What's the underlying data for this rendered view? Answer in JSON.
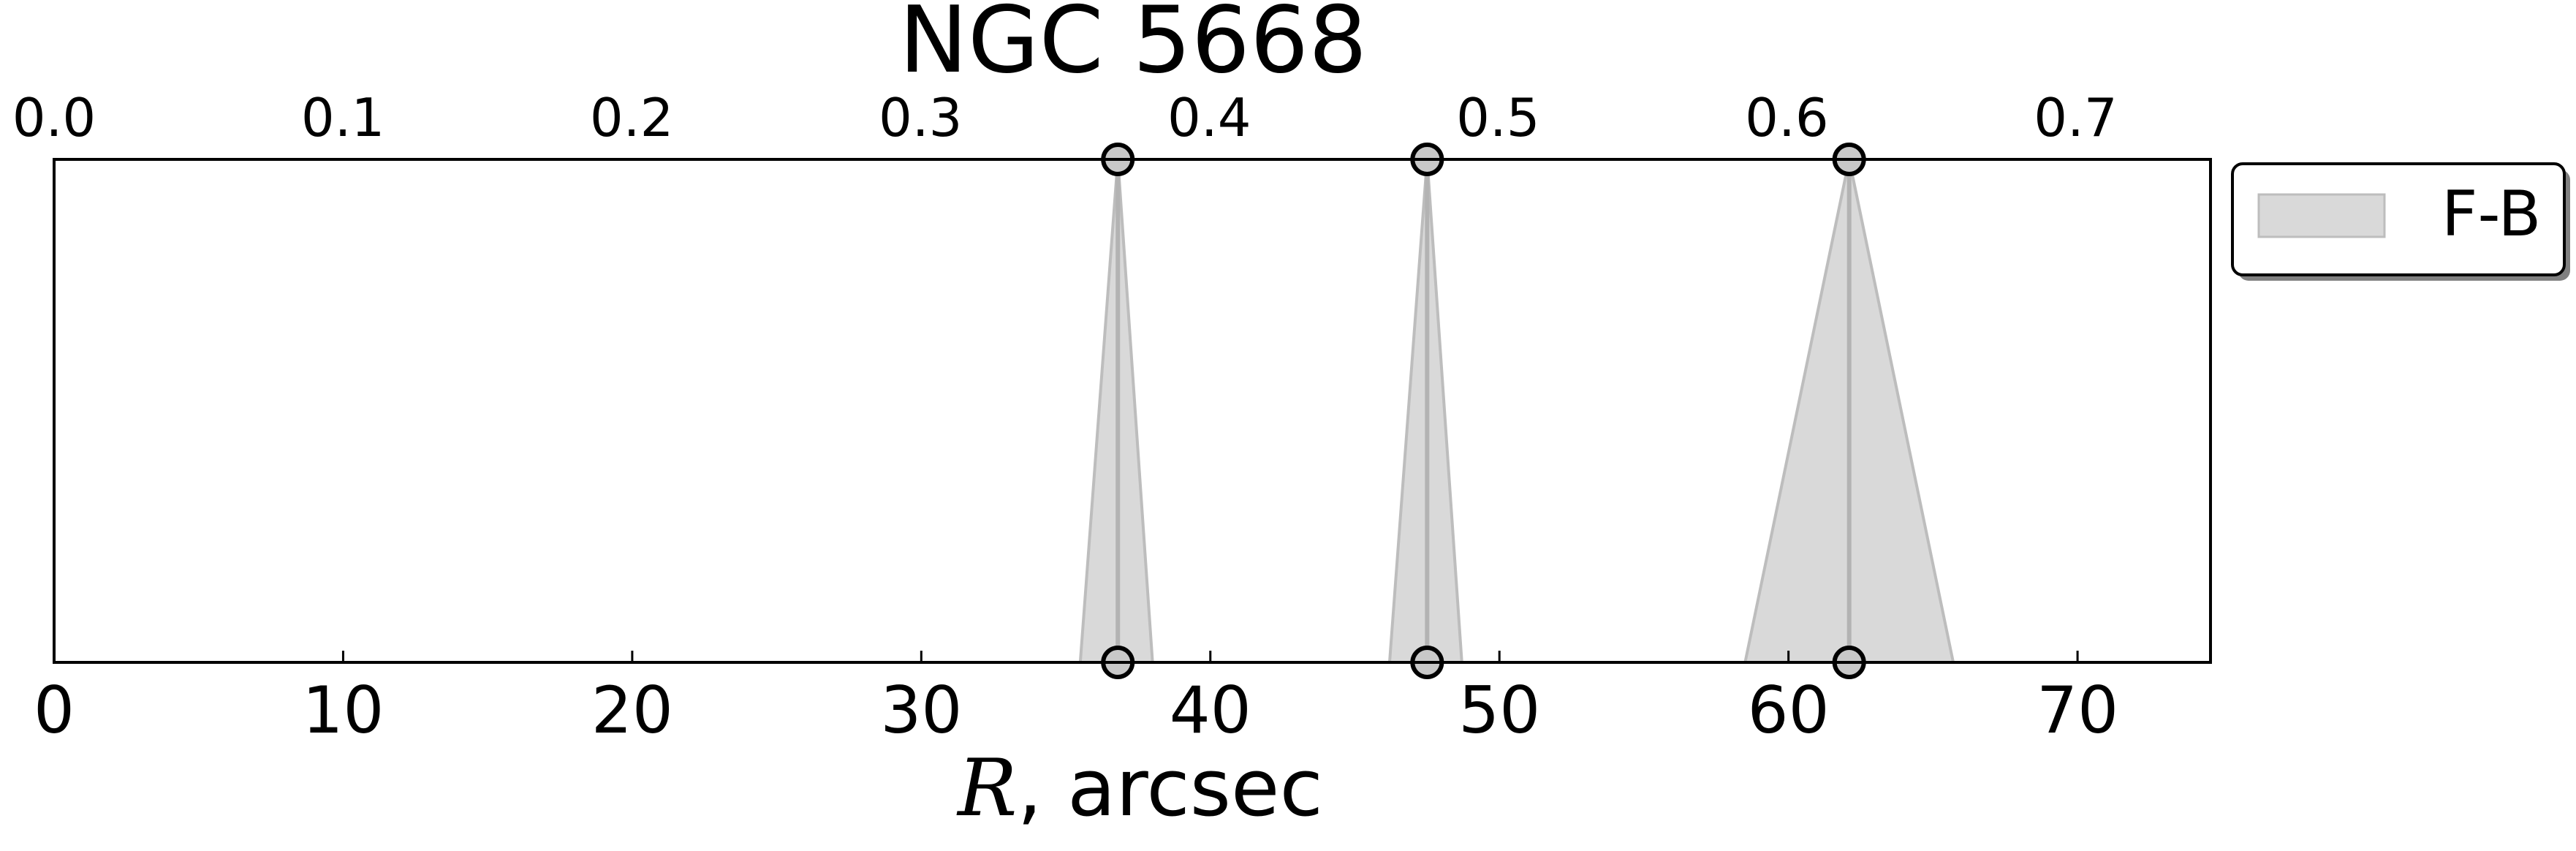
{
  "chart_data": {
    "type": "area",
    "title": "NGC 5668",
    "xlabel_symbol": "R",
    "xlabel_rest": ", arcsec",
    "xlim": [
      0,
      74.6
    ],
    "x_ticks": [
      "0",
      "10",
      "20",
      "30",
      "40",
      "50",
      "60",
      "70"
    ],
    "x_tick_values": [
      0,
      10,
      20,
      30,
      40,
      50,
      60,
      70
    ],
    "top_xlim": [
      0,
      0.7467
    ],
    "top_ticks": [
      "0.0",
      "0.1",
      "0.2",
      "0.3",
      "0.4",
      "0.5",
      "0.6",
      "0.7"
    ],
    "top_tick_values": [
      0.0,
      0.1,
      0.2,
      0.3,
      0.4,
      0.5,
      0.6,
      0.7
    ],
    "grid": false,
    "legend_position": "top-right outside",
    "series": [
      {
        "name": "F-B",
        "color": "#d9d9d9",
        "edge_color": "#bdbdbd",
        "markers": [
          {
            "x": 36.8,
            "lower": 35.5,
            "upper": 38.0
          },
          {
            "x": 47.5,
            "lower": 46.2,
            "upper": 48.7
          },
          {
            "x": 62.1,
            "lower": 58.5,
            "upper": 65.7
          }
        ]
      }
    ]
  }
}
